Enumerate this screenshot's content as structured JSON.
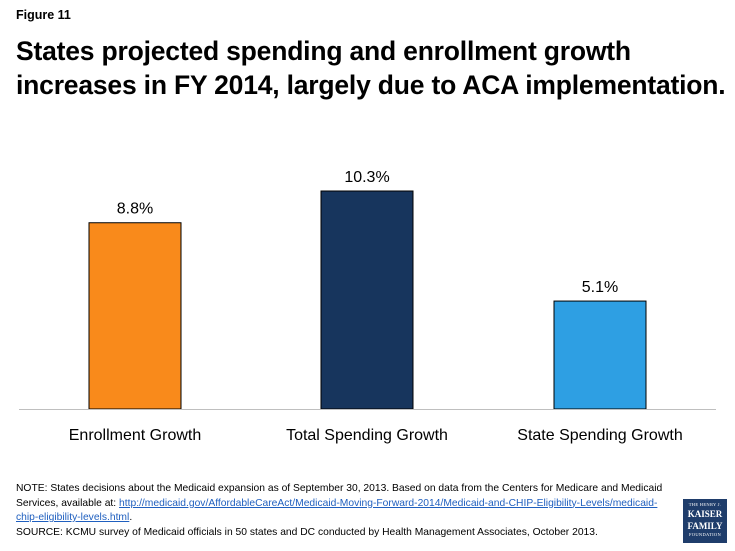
{
  "figure_label": "Figure 11",
  "title_lines": [
    "States projected spending and enrollment growth",
    "increases in FY 2014, largely due to ACA implementation."
  ],
  "chart_data": {
    "type": "bar",
    "title": "States projected spending and enrollment growth increases in FY 2014, largely due to ACA implementation.",
    "xlabel": "",
    "ylabel": "",
    "ylim": [
      0,
      10.3
    ],
    "grid": false,
    "legend": "none",
    "categories": [
      "Enrollment Growth",
      "Total Spending Growth",
      "State Spending Growth"
    ],
    "values": [
      8.8,
      10.3,
      5.1
    ],
    "value_labels": [
      "8.8%",
      "10.3%",
      "5.1%"
    ],
    "colors": [
      "#f98a1b",
      "#17355d",
      "#2e9fe3"
    ]
  },
  "footer": {
    "note_prefix": "NOTE: States decisions about the Medicaid expansion as of September 30, 2013. Based on data from the Centers for Medicare and Medicaid Services, available at: ",
    "link": "http://medicaid.gov/AffordableCareAct/Medicaid-Moving-Forward-2014/Medicaid-and-CHIP-Eligibility-Levels/medicaid-chip-eligibility-levels.html",
    "note_suffix": ".",
    "source": "SOURCE: KCMU survey of Medicaid officials in 50 states and DC conducted by Health Management Associates, October 2013."
  },
  "logo": {
    "line1": "THE HENRY J.",
    "line2": "KAISER",
    "line3": "FAMILY",
    "line4": "FOUNDATION"
  }
}
